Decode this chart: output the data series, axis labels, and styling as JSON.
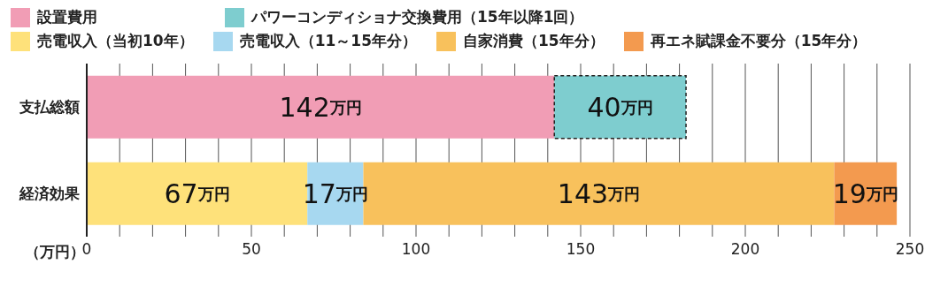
{
  "chart_data": {
    "type": "bar",
    "orientation": "horizontal",
    "stacked": true,
    "categories": [
      "支払総額",
      "経済効果"
    ],
    "series": [
      {
        "name": "設置費用",
        "color": "#f19db5",
        "values": [
          142,
          null
        ],
        "value_labels": [
          "142万円",
          null
        ]
      },
      {
        "name": "パワーコンディショナ交換費用（15年以降1回）",
        "color": "#7ecdcf",
        "values": [
          40,
          null
        ],
        "value_labels": [
          "40万円",
          null
        ],
        "line_style": "dashed"
      },
      {
        "name": "売電収入（当初10年）",
        "color": "#fee17a",
        "values": [
          null,
          67
        ],
        "value_labels": [
          null,
          "67万円"
        ]
      },
      {
        "name": "売電収入（11～15年分）",
        "color": "#a7d8f0",
        "values": [
          null,
          17
        ],
        "value_labels": [
          null,
          "17万円"
        ]
      },
      {
        "name": "自家消費（15年分）",
        "color": "#f8c15c",
        "values": [
          null,
          143
        ],
        "value_labels": [
          null,
          "143万円"
        ]
      },
      {
        "name": "再エネ賦課金不要分（15年分）",
        "color": "#f39a4f",
        "values": [
          null,
          19
        ],
        "value_labels": [
          null,
          "19万円"
        ]
      }
    ],
    "xlim": [
      0,
      250
    ],
    "xticks": [
      0,
      {
        "value": 10,
        "label": null
      },
      {
        "value": 20,
        "label": null
      },
      {
        "value": 30,
        "label": null
      },
      {
        "value": 40,
        "label": null
      },
      50,
      {
        "value": 60,
        "label": null
      },
      {
        "value": 70,
        "label": null
      },
      {
        "value": 80,
        "label": null
      },
      {
        "value": 90,
        "label": null
      },
      100,
      {
        "value": 110,
        "label": null
      },
      {
        "value": 120,
        "label": null
      },
      {
        "value": 130,
        "label": null
      },
      {
        "value": 140,
        "label": null
      },
      150,
      {
        "value": 160,
        "label": null
      },
      {
        "value": 170,
        "label": null
      },
      {
        "value": 180,
        "label": null
      },
      {
        "value": 190,
        "label": null
      },
      200,
      {
        "value": 210,
        "label": null
      },
      {
        "value": 220,
        "label": null
      },
      {
        "value": 230,
        "label": null
      },
      {
        "value": 240,
        "label": null
      },
      250
    ],
    "xlabel": "（万円）",
    "grid": "x",
    "legend": "top left"
  }
}
